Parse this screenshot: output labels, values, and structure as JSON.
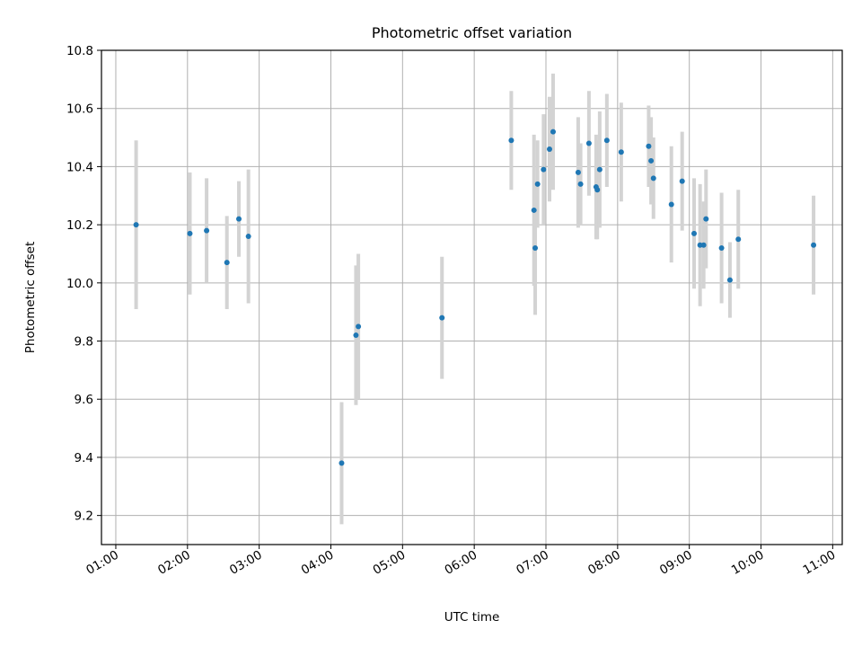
{
  "chart_data": {
    "type": "scatter",
    "title": "Photometric offset variation",
    "xlabel": "UTC time",
    "ylabel": "Photometric offset",
    "xlim": [
      "00:48",
      "11:08"
    ],
    "ylim": [
      9.1,
      10.8
    ],
    "x_ticks": [
      "01:00",
      "02:00",
      "03:00",
      "04:00",
      "05:00",
      "06:00",
      "07:00",
      "08:00",
      "09:00",
      "10:00",
      "11:00"
    ],
    "y_ticks": [
      9.2,
      9.4,
      9.6,
      9.8,
      10.0,
      10.2,
      10.4,
      10.6,
      10.8
    ],
    "grid": true,
    "colors": {
      "marker": "#1f77b4",
      "errorbar": "#d3d3d3",
      "grid": "#b0b0b0"
    },
    "series": [
      {
        "points": [
          {
            "time": "01:17",
            "y": 10.2,
            "err": 0.29
          },
          {
            "time": "02:02",
            "y": 10.17,
            "err": 0.21
          },
          {
            "time": "02:16",
            "y": 10.18,
            "err": 0.18
          },
          {
            "time": "02:33",
            "y": 10.07,
            "err": 0.16
          },
          {
            "time": "02:43",
            "y": 10.22,
            "err": 0.13
          },
          {
            "time": "02:51",
            "y": 10.16,
            "err": 0.23
          },
          {
            "time": "04:09",
            "y": 9.38,
            "err": 0.21
          },
          {
            "time": "04:21",
            "y": 9.82,
            "err": 0.24
          },
          {
            "time": "04:23",
            "y": 9.85,
            "err": 0.25
          },
          {
            "time": "05:33",
            "y": 9.88,
            "err": 0.21
          },
          {
            "time": "06:31",
            "y": 10.49,
            "err": 0.17
          },
          {
            "time": "06:50",
            "y": 10.25,
            "err": 0.26
          },
          {
            "time": "06:51",
            "y": 10.12,
            "err": 0.23
          },
          {
            "time": "06:53",
            "y": 10.34,
            "err": 0.15
          },
          {
            "time": "06:58",
            "y": 10.39,
            "err": 0.19
          },
          {
            "time": "07:03",
            "y": 10.46,
            "err": 0.18
          },
          {
            "time": "07:06",
            "y": 10.52,
            "err": 0.2
          },
          {
            "time": "07:27",
            "y": 10.38,
            "err": 0.19
          },
          {
            "time": "07:29",
            "y": 10.34,
            "err": 0.14
          },
          {
            "time": "07:36",
            "y": 10.48,
            "err": 0.18
          },
          {
            "time": "07:42",
            "y": 10.33,
            "err": 0.18
          },
          {
            "time": "07:43",
            "y": 10.32,
            "err": 0.17
          },
          {
            "time": "07:45",
            "y": 10.39,
            "err": 0.2
          },
          {
            "time": "07:51",
            "y": 10.49,
            "err": 0.16
          },
          {
            "time": "08:03",
            "y": 10.45,
            "err": 0.17
          },
          {
            "time": "08:26",
            "y": 10.47,
            "err": 0.14
          },
          {
            "time": "08:28",
            "y": 10.42,
            "err": 0.15
          },
          {
            "time": "08:30",
            "y": 10.36,
            "err": 0.14
          },
          {
            "time": "08:45",
            "y": 10.27,
            "err": 0.2
          },
          {
            "time": "08:54",
            "y": 10.35,
            "err": 0.17
          },
          {
            "time": "09:04",
            "y": 10.17,
            "err": 0.19
          },
          {
            "time": "09:09",
            "y": 10.13,
            "err": 0.21
          },
          {
            "time": "09:12",
            "y": 10.13,
            "err": 0.15
          },
          {
            "time": "09:14",
            "y": 10.22,
            "err": 0.17
          },
          {
            "time": "09:27",
            "y": 10.12,
            "err": 0.19
          },
          {
            "time": "09:34",
            "y": 10.01,
            "err": 0.13
          },
          {
            "time": "09:41",
            "y": 10.15,
            "err": 0.17
          },
          {
            "time": "10:44",
            "y": 10.13,
            "err": 0.17
          }
        ]
      }
    ]
  }
}
